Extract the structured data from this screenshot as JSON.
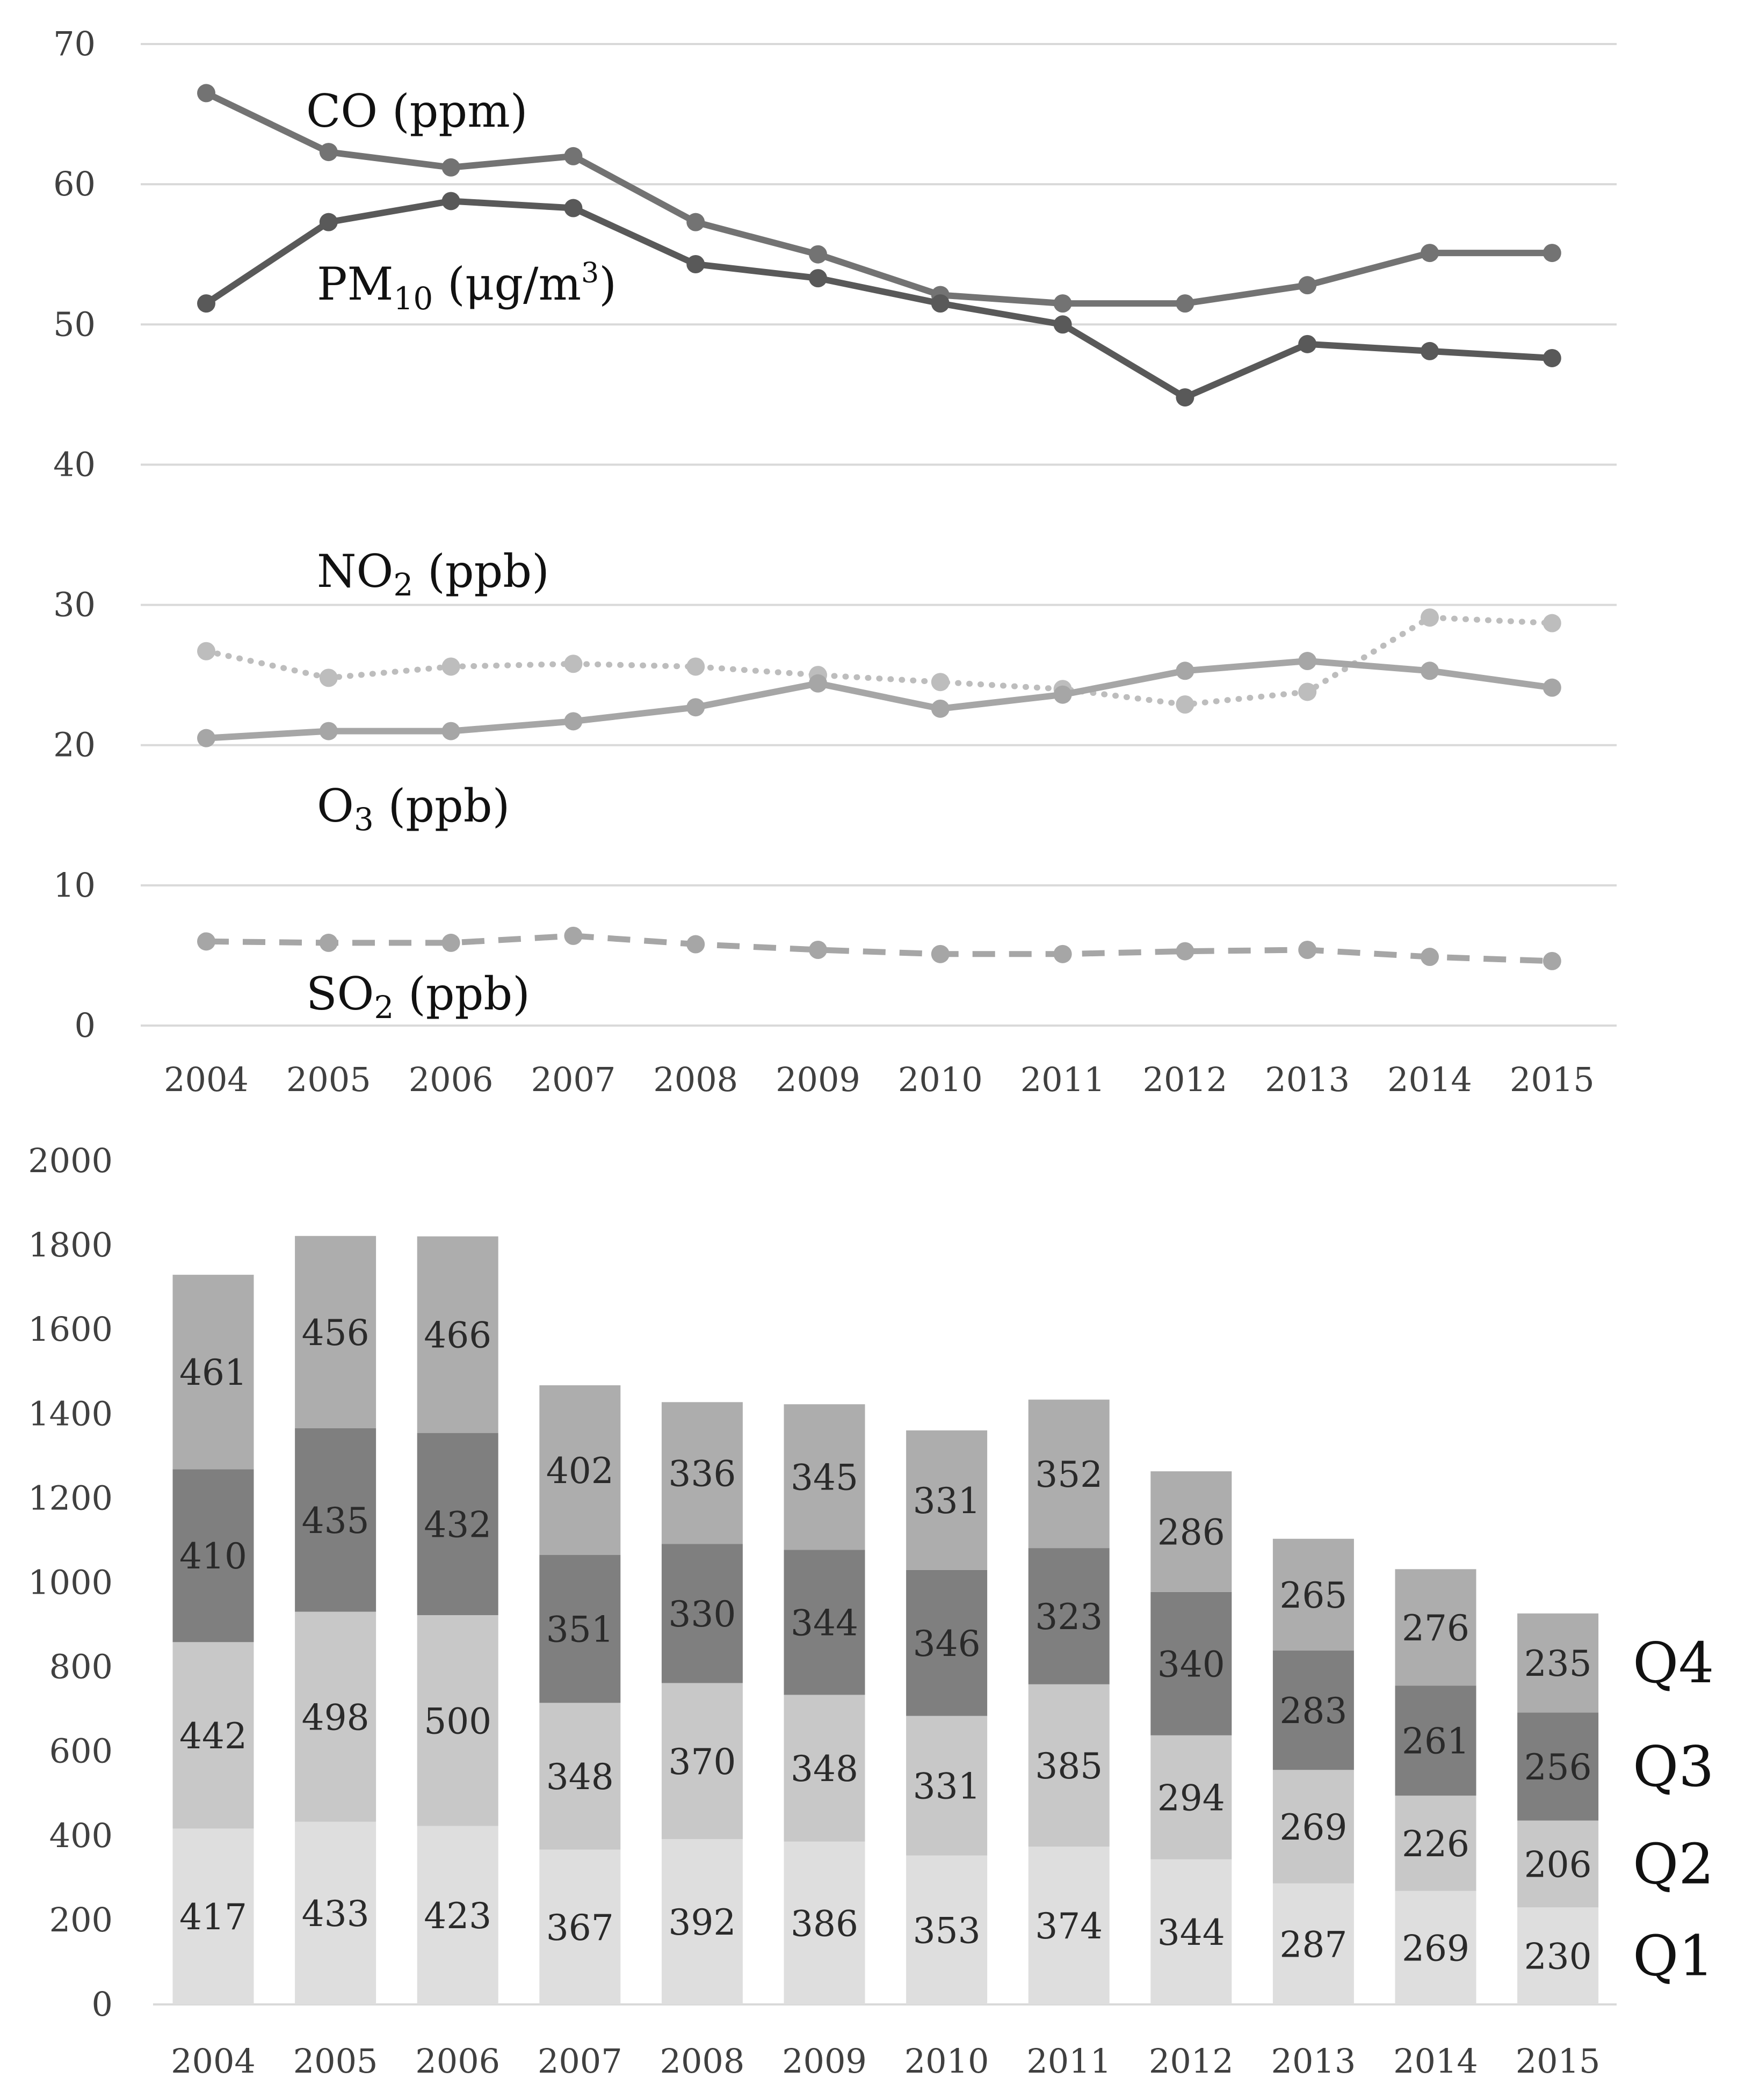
{
  "chart_data": [
    {
      "type": "line",
      "title": "",
      "xlabel": "",
      "ylabel": "",
      "x": [
        "2004",
        "2005",
        "2006",
        "2007",
        "2008",
        "2009",
        "2010",
        "2011",
        "2012",
        "2013",
        "2014",
        "2015"
      ],
      "ylim": [
        0,
        70
      ],
      "yticks": [
        0,
        10,
        20,
        30,
        40,
        50,
        60,
        70
      ],
      "grid": true,
      "series": [
        {
          "key": "co",
          "name": "CO (ppm)",
          "values": [
            66.5,
            62.3,
            61.2,
            62.0,
            57.3,
            55.0,
            52.1,
            51.5,
            51.5,
            52.8,
            55.1,
            55.1
          ],
          "color": "#737373",
          "style": "solid"
        },
        {
          "key": "pm10",
          "name": "PM10 (μg/m3)",
          "values": [
            51.5,
            57.3,
            58.8,
            58.3,
            54.3,
            53.3,
            51.5,
            50.0,
            44.8,
            48.6,
            48.1,
            47.6
          ],
          "color": "#595959",
          "style": "solid"
        },
        {
          "key": "no2",
          "name": "NO2 (ppb)",
          "values": [
            26.7,
            24.8,
            25.6,
            25.8,
            25.6,
            25.0,
            24.5,
            24.0,
            22.9,
            23.8,
            29.1,
            28.7
          ],
          "color": "#bdbdbd",
          "style": "dotted"
        },
        {
          "key": "o3",
          "name": "O3 (ppb)",
          "values": [
            20.5,
            21.0,
            21.0,
            21.7,
            22.7,
            24.4,
            22.6,
            23.6,
            25.3,
            26.0,
            25.3,
            24.1
          ],
          "color": "#a6a6a6",
          "style": "solid"
        },
        {
          "key": "so2",
          "name": "SO2 (ppb)",
          "values": [
            6.0,
            5.9,
            5.9,
            6.4,
            5.8,
            5.4,
            5.1,
            5.1,
            5.3,
            5.4,
            4.9,
            4.6
          ],
          "color": "#a6a6a6",
          "style": "dashed"
        }
      ],
      "labels": {
        "co": {
          "main": "CO (ppm)"
        },
        "pm10": {
          "main": "PM",
          "sub": "10",
          "unit": " (μg/m",
          "sup": "3",
          "close": ")"
        },
        "no2": {
          "main": "NO",
          "sub": "2",
          "unit": " (ppb)"
        },
        "o3": {
          "main": "O",
          "sub": "3",
          "unit": " (ppb)"
        },
        "so2": {
          "main": "SO",
          "sub": "2",
          "unit": " (ppb)"
        }
      }
    },
    {
      "type": "bar",
      "stacked": true,
      "title": "",
      "xlabel": "",
      "ylabel": "",
      "categories": [
        "2004",
        "2005",
        "2006",
        "2007",
        "2008",
        "2009",
        "2010",
        "2011",
        "2012",
        "2013",
        "2014",
        "2015"
      ],
      "ylim": [
        0,
        2000
      ],
      "yticks": [
        0,
        200,
        400,
        600,
        800,
        1000,
        1200,
        1400,
        1600,
        1800,
        2000
      ],
      "grid": false,
      "series": [
        {
          "name": "Q1",
          "values": [
            417,
            433,
            423,
            367,
            392,
            386,
            353,
            374,
            344,
            287,
            269,
            230
          ],
          "color": "#dedede"
        },
        {
          "name": "Q2",
          "values": [
            442,
            498,
            500,
            348,
            370,
            348,
            331,
            385,
            294,
            269,
            226,
            206
          ],
          "color": "#c8c8c8"
        },
        {
          "name": "Q3",
          "values": [
            410,
            435,
            432,
            351,
            330,
            344,
            346,
            323,
            340,
            283,
            261,
            256
          ],
          "color": "#7f7f7f"
        },
        {
          "name": "Q4",
          "values": [
            461,
            456,
            466,
            402,
            336,
            345,
            331,
            352,
            286,
            265,
            276,
            235
          ],
          "color": "#adadad"
        }
      ]
    }
  ]
}
